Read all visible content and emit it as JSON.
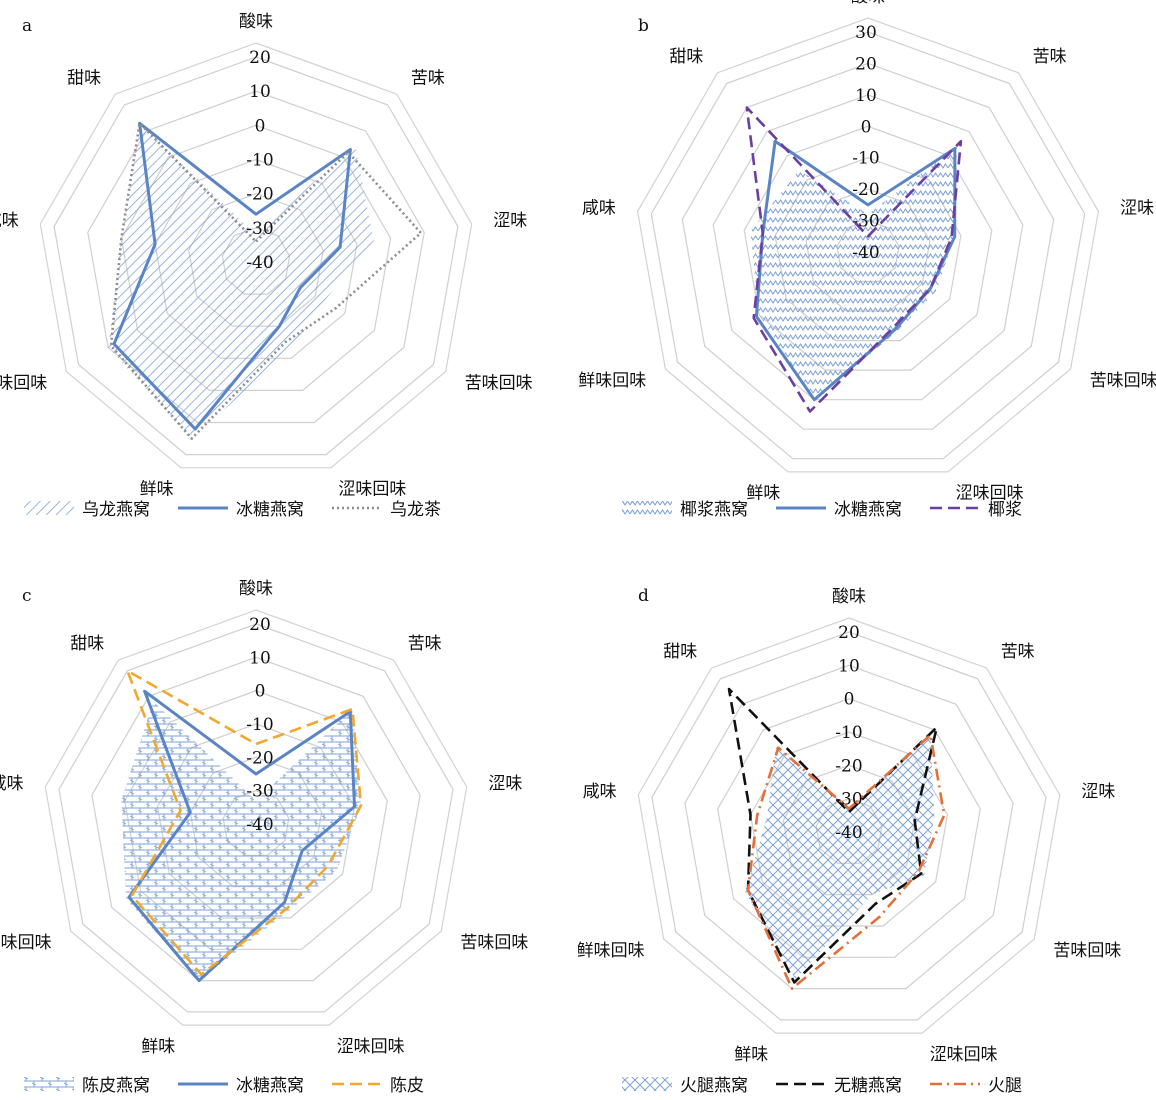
{
  "figure": {
    "panels": [
      {
        "letter": "a",
        "legend": [
          "乌龙燕窝",
          "冰糖燕窝",
          "乌龙茶"
        ]
      },
      {
        "letter": "b",
        "legend": [
          "椰浆燕窝",
          "冰糖燕窝",
          "椰浆"
        ]
      },
      {
        "letter": "c",
        "legend": [
          "陈皮燕窝",
          "冰糖燕窝",
          "陈皮"
        ]
      },
      {
        "letter": "d",
        "legend": [
          "火腿燕窝",
          "无糖燕窝",
          "火腿"
        ]
      }
    ]
  },
  "chart_data": [
    {
      "type": "radar",
      "panel": "a",
      "axes": [
        "酸味",
        "苦味",
        "涩味",
        "苦味回味",
        "涩味回味",
        "鲜味",
        "鲜味回味",
        "咸味",
        "甜味"
      ],
      "rlim": [
        -40,
        20
      ],
      "ticks": [
        "20",
        "10",
        "0",
        "-10",
        "-20",
        "-30",
        "-40"
      ],
      "series": [
        {
          "name": "乌龙燕窝",
          "style": "hatch-diagonal",
          "color": "#7fa3d6",
          "values": [
            -32,
            5,
            -5,
            -17,
            -12,
            15,
            10,
            0,
            13
          ]
        },
        {
          "name": "冰糖燕窝",
          "style": "solid",
          "color": "#5b84c4",
          "values": [
            -26,
            3,
            -15,
            -25,
            -20,
            12,
            8,
            -10,
            13
          ]
        },
        {
          "name": "乌龙茶",
          "style": "dotted",
          "color": "#8c8c8c",
          "values": [
            -34,
            2,
            9,
            -13,
            -15,
            15,
            9,
            0,
            13
          ]
        }
      ]
    },
    {
      "type": "radar",
      "panel": "b",
      "axes": [
        "酸味",
        "苦味",
        "涩味",
        "苦味回味",
        "涩味回味",
        "鲜味",
        "鲜味回味",
        "咸味",
        "甜味"
      ],
      "rlim": [
        -40,
        30
      ],
      "ticks": [
        "30",
        "20",
        "10",
        "0",
        "-10",
        "-20",
        "-30",
        "-40"
      ],
      "series": [
        {
          "name": "椰浆燕窝",
          "style": "zigzag-fill",
          "color": "#7fa3d6",
          "values": [
            -28,
            4,
            -12,
            -15,
            -13,
            10,
            0,
            -2,
            -6
          ]
        },
        {
          "name": "冰糖燕窝",
          "style": "solid",
          "color": "#5b84c4",
          "values": [
            -25,
            3,
            -12,
            -17,
            -14,
            10,
            1,
            -6,
            6
          ]
        },
        {
          "name": "椰浆",
          "style": "dashed",
          "color": "#6b3fa0",
          "values": [
            -35,
            6,
            -13,
            -17,
            -15,
            14,
            2,
            -6,
            20
          ]
        }
      ]
    },
    {
      "type": "radar",
      "panel": "c",
      "axes": [
        "酸味",
        "苦味",
        "涩味",
        "苦味回味",
        "涩味回味",
        "鲜味",
        "鲜味回味",
        "咸味",
        "甜味"
      ],
      "rlim": [
        -40,
        20
      ],
      "ticks": [
        "20",
        "10",
        "0",
        "-10",
        "-20",
        "-30",
        "-40"
      ],
      "series": [
        {
          "name": "陈皮燕窝",
          "style": "brick-fill",
          "color": "#7fa3d6",
          "values": [
            -33,
            5,
            -8,
            -12,
            -12,
            10,
            5,
            1,
            8
          ]
        },
        {
          "name": "冰糖燕窝",
          "style": "solid",
          "color": "#5b84c4",
          "values": [
            -25,
            4,
            -10,
            -24,
            -15,
            10,
            4,
            -20,
            12
          ]
        },
        {
          "name": "陈皮",
          "style": "dashed",
          "color": "#f0a830",
          "values": [
            -16,
            5,
            -8,
            -15,
            -13,
            8,
            3,
            -17,
            20
          ]
        }
      ]
    },
    {
      "type": "radar",
      "panel": "d",
      "axes": [
        "酸味",
        "苦味",
        "涩味",
        "苦味回味",
        "涩味回味",
        "鲜味",
        "鲜味回味",
        "咸味",
        "甜味"
      ],
      "rlim": [
        -40,
        20
      ],
      "ticks": [
        "20",
        "10",
        "0",
        "-10",
        "-20",
        "-30",
        "-40"
      ],
      "series": [
        {
          "name": "火腿燕窝",
          "style": "crosshatch-fill",
          "color": "#7fa3d6",
          "values": [
            -33,
            -2,
            -14,
            -14,
            -20,
            7,
            -4,
            -15,
            -6
          ]
        },
        {
          "name": "无糖燕窝",
          "style": "dashed",
          "color": "#111111",
          "values": [
            -34,
            1,
            -20,
            -15,
            -17,
            8,
            -5,
            -10,
            16
          ]
        },
        {
          "name": "火腿",
          "style": "dash-dot",
          "color": "#e2703a",
          "values": [
            -33,
            -2,
            -11,
            -16,
            -13,
            10,
            -5,
            -12,
            -7
          ]
        }
      ]
    }
  ]
}
